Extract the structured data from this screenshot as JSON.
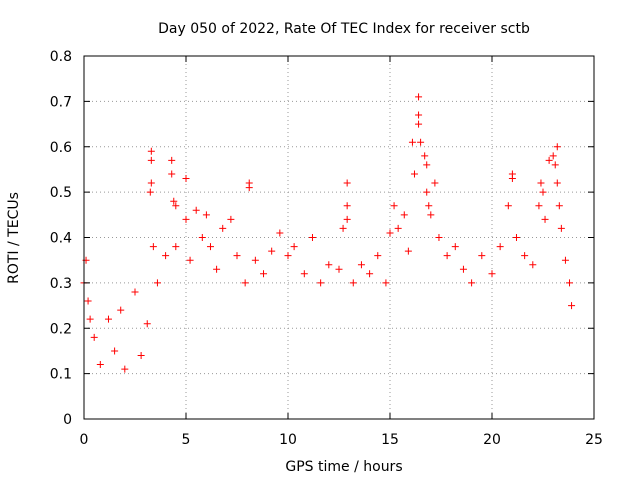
{
  "chart_data": {
    "type": "scatter",
    "title": "Day 050 of 2022, Rate Of TEC Index for receiver sctb",
    "xlabel": "GPS time / hours",
    "ylabel": "ROTI / TECUs",
    "xlim": [
      0,
      25
    ],
    "ylim": [
      0,
      0.8
    ],
    "xticks": [
      0,
      5,
      10,
      15,
      20,
      25
    ],
    "yticks": [
      0,
      0.1,
      0.2,
      0.3,
      0.4,
      0.5,
      0.6,
      0.7,
      0.8
    ],
    "xtick_labels": [
      "0",
      "5",
      "10",
      "15",
      "20",
      "25"
    ],
    "ytick_labels": [
      "0",
      "0.1",
      "0.2",
      "0.3",
      "0.4",
      "0.5",
      "0.6",
      "0.7",
      "0.8"
    ],
    "grid": true,
    "marker": "+",
    "color": "#ff0000",
    "series": [
      {
        "name": "",
        "points": [
          [
            0.0,
            0.3
          ],
          [
            0.1,
            0.35
          ],
          [
            0.2,
            0.26
          ],
          [
            0.3,
            0.22
          ],
          [
            0.5,
            0.18
          ],
          [
            0.8,
            0.12
          ],
          [
            1.2,
            0.22
          ],
          [
            1.5,
            0.15
          ],
          [
            1.8,
            0.24
          ],
          [
            2.0,
            0.11
          ],
          [
            2.5,
            0.28
          ],
          [
            2.8,
            0.14
          ],
          [
            3.1,
            0.21
          ],
          [
            3.3,
            0.59
          ],
          [
            3.3,
            0.57
          ],
          [
            3.3,
            0.52
          ],
          [
            3.25,
            0.5
          ],
          [
            3.4,
            0.38
          ],
          [
            3.6,
            0.3
          ],
          [
            4.0,
            0.36
          ],
          [
            4.3,
            0.57
          ],
          [
            4.3,
            0.54
          ],
          [
            4.4,
            0.48
          ],
          [
            4.5,
            0.47
          ],
          [
            4.5,
            0.38
          ],
          [
            5.0,
            0.53
          ],
          [
            5.0,
            0.44
          ],
          [
            5.2,
            0.35
          ],
          [
            5.5,
            0.46
          ],
          [
            5.8,
            0.4
          ],
          [
            6.0,
            0.45
          ],
          [
            6.2,
            0.38
          ],
          [
            6.5,
            0.33
          ],
          [
            6.8,
            0.42
          ],
          [
            7.2,
            0.44
          ],
          [
            7.5,
            0.36
          ],
          [
            7.9,
            0.3
          ],
          [
            8.1,
            0.52
          ],
          [
            8.1,
            0.51
          ],
          [
            8.4,
            0.35
          ],
          [
            8.8,
            0.32
          ],
          [
            9.2,
            0.37
          ],
          [
            9.6,
            0.41
          ],
          [
            10.0,
            0.36
          ],
          [
            10.3,
            0.38
          ],
          [
            10.8,
            0.32
          ],
          [
            11.2,
            0.4
          ],
          [
            11.6,
            0.3
          ],
          [
            12.0,
            0.34
          ],
          [
            12.5,
            0.33
          ],
          [
            12.9,
            0.52
          ],
          [
            12.9,
            0.47
          ],
          [
            12.9,
            0.44
          ],
          [
            12.7,
            0.42
          ],
          [
            13.2,
            0.3
          ],
          [
            13.6,
            0.34
          ],
          [
            14.0,
            0.32
          ],
          [
            14.4,
            0.36
          ],
          [
            14.8,
            0.3
          ],
          [
            15.0,
            0.41
          ],
          [
            15.2,
            0.47
          ],
          [
            15.4,
            0.42
          ],
          [
            15.7,
            0.45
          ],
          [
            15.9,
            0.37
          ],
          [
            16.1,
            0.61
          ],
          [
            16.2,
            0.54
          ],
          [
            16.4,
            0.71
          ],
          [
            16.4,
            0.67
          ],
          [
            16.4,
            0.65
          ],
          [
            16.5,
            0.61
          ],
          [
            16.7,
            0.58
          ],
          [
            16.8,
            0.56
          ],
          [
            16.8,
            0.5
          ],
          [
            16.9,
            0.47
          ],
          [
            17.0,
            0.45
          ],
          [
            17.2,
            0.52
          ],
          [
            17.4,
            0.4
          ],
          [
            17.8,
            0.36
          ],
          [
            18.2,
            0.38
          ],
          [
            18.6,
            0.33
          ],
          [
            19.0,
            0.3
          ],
          [
            19.5,
            0.36
          ],
          [
            20.0,
            0.32
          ],
          [
            20.4,
            0.38
          ],
          [
            20.8,
            0.47
          ],
          [
            21.0,
            0.53
          ],
          [
            21.0,
            0.54
          ],
          [
            21.2,
            0.4
          ],
          [
            21.6,
            0.36
          ],
          [
            22.0,
            0.34
          ],
          [
            22.3,
            0.47
          ],
          [
            22.4,
            0.52
          ],
          [
            22.5,
            0.5
          ],
          [
            22.6,
            0.44
          ],
          [
            22.8,
            0.57
          ],
          [
            23.0,
            0.58
          ],
          [
            23.2,
            0.6
          ],
          [
            23.1,
            0.56
          ],
          [
            23.2,
            0.52
          ],
          [
            23.3,
            0.47
          ],
          [
            23.4,
            0.42
          ],
          [
            23.6,
            0.35
          ],
          [
            23.8,
            0.3
          ],
          [
            23.9,
            0.25
          ]
        ]
      }
    ]
  }
}
